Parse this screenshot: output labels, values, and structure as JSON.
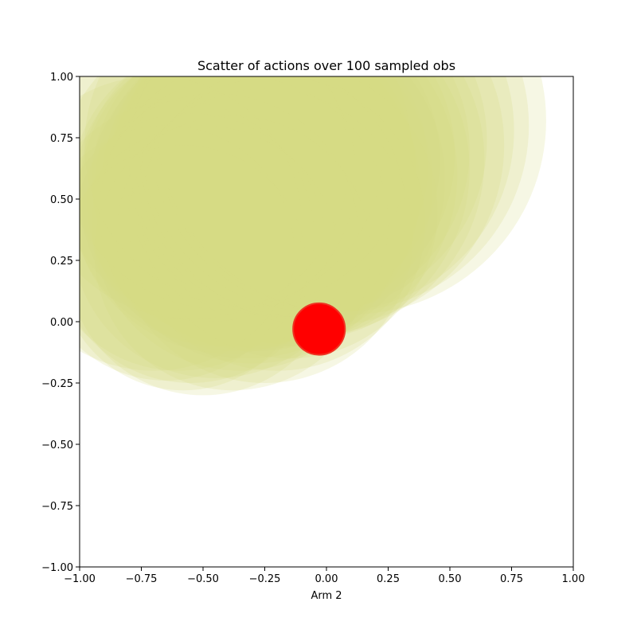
{
  "chart_data": {
    "type": "scatter",
    "title": "Scatter of actions over 100 sampled obs",
    "xlabel": "Arm 2",
    "ylabel": "",
    "xlim": [
      -1.0,
      1.0
    ],
    "ylim": [
      -1.0,
      1.0
    ],
    "grid": false,
    "xticks": [
      "−1.00",
      "−0.75",
      "−0.50",
      "−0.25",
      "0.00",
      "0.25",
      "0.50",
      "0.75",
      "1.00"
    ],
    "yticks": [
      "−1.00",
      "−0.75",
      "−0.50",
      "−0.25",
      "0.00",
      "0.25",
      "0.50",
      "0.75",
      "1.00"
    ],
    "series": [
      {
        "color": "#d4dc84",
        "points": [
          {
            "x": -0.42,
            "y": 0.52,
            "r": 0.62
          },
          {
            "x": -0.4,
            "y": 0.5,
            "r": 0.63
          },
          {
            "x": -0.38,
            "y": 0.55,
            "r": 0.62
          },
          {
            "x": -0.36,
            "y": 0.52,
            "r": 0.64
          },
          {
            "x": -0.34,
            "y": 0.58,
            "r": 0.61
          },
          {
            "x": -0.32,
            "y": 0.5,
            "r": 0.65
          },
          {
            "x": -0.3,
            "y": 0.6,
            "r": 0.6
          },
          {
            "x": -0.28,
            "y": 0.54,
            "r": 0.66
          },
          {
            "x": -0.26,
            "y": 0.62,
            "r": 0.62
          },
          {
            "x": -0.24,
            "y": 0.56,
            "r": 0.67
          },
          {
            "x": -0.22,
            "y": 0.64,
            "r": 0.63
          },
          {
            "x": -0.2,
            "y": 0.58,
            "r": 0.68
          },
          {
            "x": -0.18,
            "y": 0.66,
            "r": 0.64
          },
          {
            "x": -0.16,
            "y": 0.6,
            "r": 0.69
          },
          {
            "x": -0.14,
            "y": 0.68,
            "r": 0.66
          },
          {
            "x": -0.12,
            "y": 0.62,
            "r": 0.7
          },
          {
            "x": -0.1,
            "y": 0.7,
            "r": 0.68
          },
          {
            "x": -0.08,
            "y": 0.66,
            "r": 0.72
          },
          {
            "x": -0.05,
            "y": 0.74,
            "r": 0.7
          },
          {
            "x": -0.02,
            "y": 0.72,
            "r": 0.74
          },
          {
            "x": 0.02,
            "y": 0.78,
            "r": 0.74
          },
          {
            "x": 0.06,
            "y": 0.8,
            "r": 0.76
          },
          {
            "x": 0.1,
            "y": 0.82,
            "r": 0.79
          },
          {
            "x": -0.55,
            "y": 0.3,
            "r": 0.55
          },
          {
            "x": -0.6,
            "y": 0.35,
            "r": 0.55
          },
          {
            "x": -0.65,
            "y": 0.28,
            "r": 0.52
          },
          {
            "x": -0.5,
            "y": 0.25,
            "r": 0.55
          },
          {
            "x": -0.45,
            "y": 0.35,
            "r": 0.58
          },
          {
            "x": -0.7,
            "y": 0.4,
            "r": 0.6
          },
          {
            "x": -0.35,
            "y": 0.4,
            "r": 0.6
          },
          {
            "x": -0.48,
            "y": 0.6,
            "r": 0.6
          },
          {
            "x": -0.3,
            "y": 0.45,
            "r": 0.62
          },
          {
            "x": -0.25,
            "y": 0.35,
            "r": 0.6
          },
          {
            "x": -0.58,
            "y": 0.22,
            "r": 0.5
          },
          {
            "x": -0.38,
            "y": 0.28,
            "r": 0.56
          },
          {
            "x": -0.2,
            "y": 0.4,
            "r": 0.6
          },
          {
            "x": -0.15,
            "y": 0.45,
            "r": 0.6
          },
          {
            "x": -0.42,
            "y": 0.7,
            "r": 0.65
          },
          {
            "x": -0.55,
            "y": 0.65,
            "r": 0.64
          },
          {
            "x": -0.32,
            "y": 0.72,
            "r": 0.66
          }
        ]
      },
      {
        "color": "#ff0000",
        "points": [
          {
            "x": -0.03,
            "y": -0.03,
            "r": 0.105
          }
        ]
      }
    ]
  }
}
